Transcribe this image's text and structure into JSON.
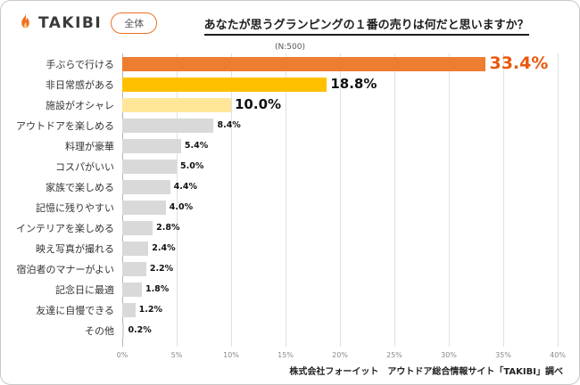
{
  "header": {
    "logo_text": "TAKIBI",
    "badge_label": "全体",
    "title": "あなたが思うグランピングの１番の売りは何だと思いますか？"
  },
  "chart_data": {
    "type": "bar",
    "orientation": "horizontal",
    "subtitle": "(N:500)",
    "categories": [
      "手ぶらで行ける",
      "非日常感がある",
      "施設がオシャレ",
      "アウトドアを楽しめる",
      "料理が豪華",
      "コスパがいい",
      "家族で楽しめる",
      "記憶に残りやすい",
      "インテリアを楽しめる",
      "映え写真が撮れる",
      "宿泊者のマナーがよい",
      "記念日に最適",
      "友達に自慢できる",
      "その他"
    ],
    "values": [
      33.4,
      18.8,
      10.0,
      8.4,
      5.4,
      5.0,
      4.4,
      4.0,
      2.8,
      2.4,
      2.2,
      1.8,
      1.2,
      0.2
    ],
    "value_labels": [
      "33.4%",
      "18.8%",
      "10.0%",
      "8.4%",
      "5.4%",
      "5.0%",
      "4.4%",
      "4.0%",
      "2.8%",
      "2.4%",
      "2.2%",
      "1.8%",
      "1.2%",
      "0.2%"
    ],
    "bar_colors": [
      "#ED7D31",
      "#FFC000",
      "#FFE699",
      "#D9D9D9",
      "#D9D9D9",
      "#D9D9D9",
      "#D9D9D9",
      "#D9D9D9",
      "#D9D9D9",
      "#D9D9D9",
      "#D9D9D9",
      "#D9D9D9",
      "#D9D9D9",
      "#D9D9D9"
    ],
    "value_sizes": [
      "lg",
      "md",
      "md",
      "sm",
      "sm",
      "sm",
      "sm",
      "sm",
      "sm",
      "sm",
      "sm",
      "sm",
      "sm",
      "sm"
    ],
    "value_colors": [
      "#E8590C",
      "#111111",
      "#111111",
      "#111111",
      "#111111",
      "#111111",
      "#111111",
      "#111111",
      "#111111",
      "#111111",
      "#111111",
      "#111111",
      "#111111",
      "#111111"
    ],
    "xlim": [
      0,
      40
    ],
    "x_ticks": [
      "0%",
      "5%",
      "10%",
      "15%",
      "20%",
      "25%",
      "30%",
      "35%",
      "40%"
    ],
    "grid": true,
    "legend": false
  },
  "footer": {
    "credit": "株式会社フォーイット　アウトドア総合情報サイト「TAKIBI」調べ"
  },
  "colors": {
    "accent_orange": "#ED7224"
  }
}
